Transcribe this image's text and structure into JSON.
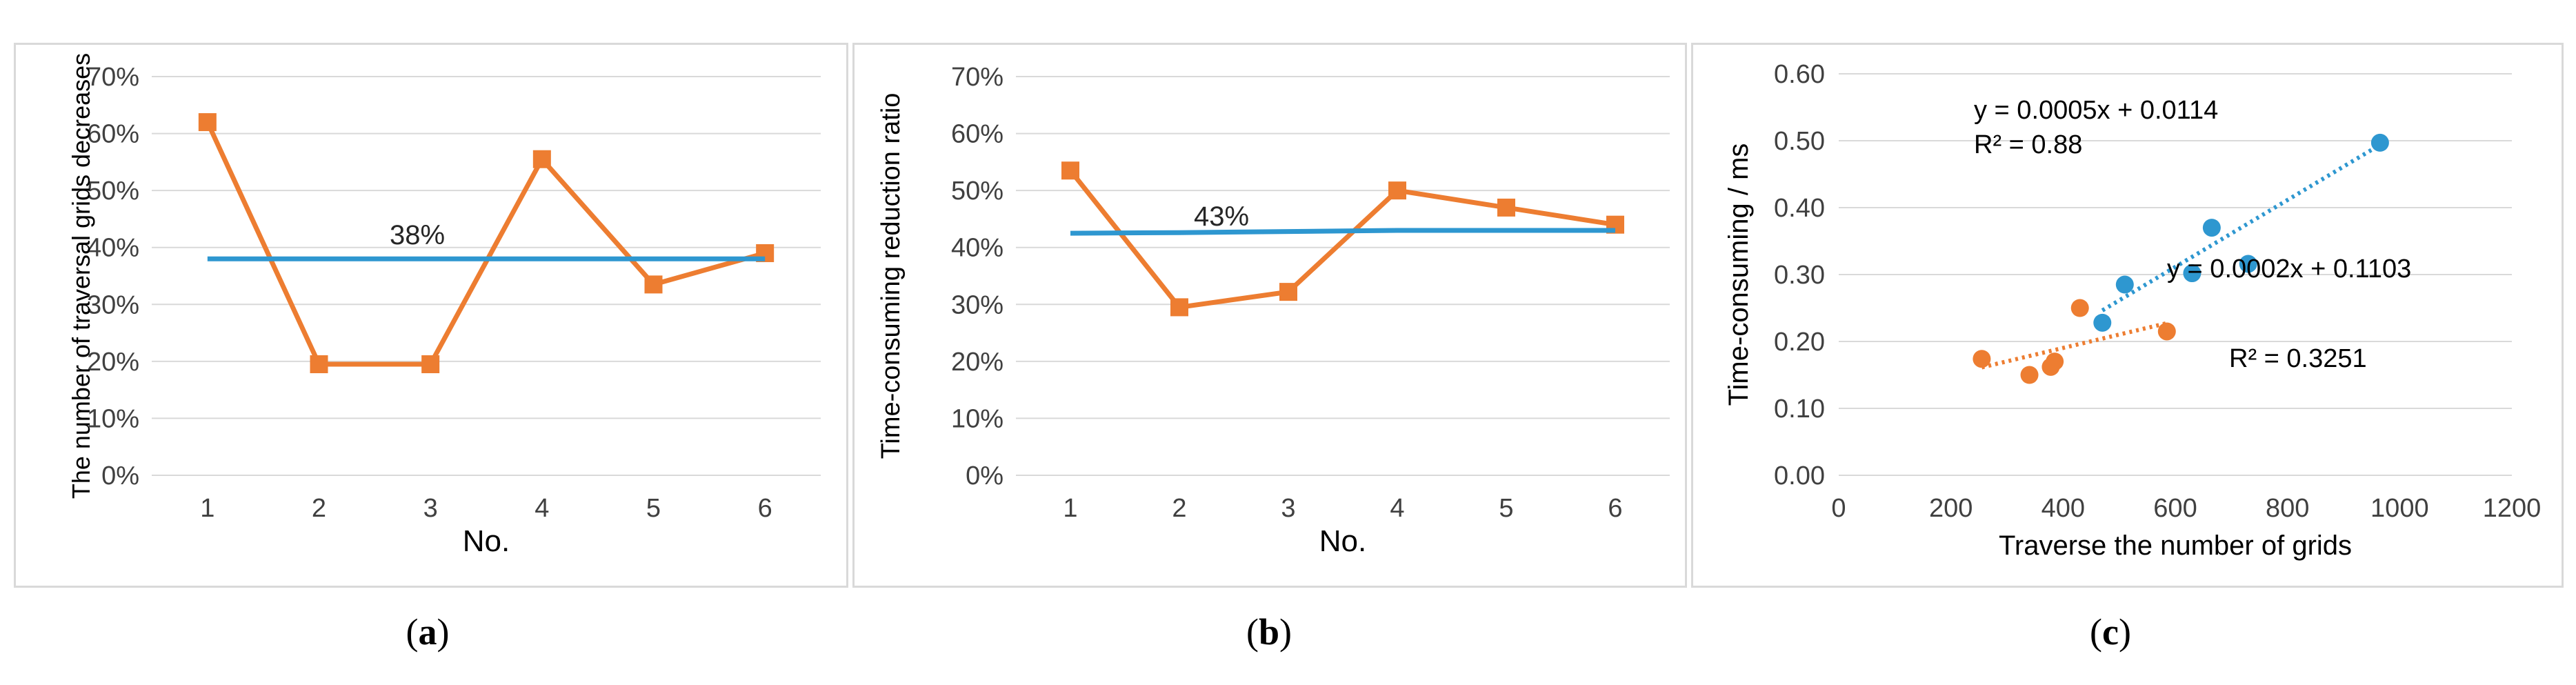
{
  "captions": {
    "a_open": "(",
    "a_letter": "a",
    "a_close": ")",
    "b_open": "(",
    "b_letter": "b",
    "b_close": ")",
    "c_open": "(",
    "c_letter": "c",
    "c_close": ")"
  },
  "colors": {
    "orange": "#ED7D31",
    "blue": "#2E97D0",
    "grid": "#d9d9d9",
    "axis_text": "#404040"
  },
  "chart_data": [
    {
      "type": "line",
      "panel": "a",
      "title": "",
      "xlabel": "No.",
      "ylabel": "The number of traversal grids decreases",
      "categories": [
        "1",
        "2",
        "3",
        "4",
        "5",
        "6"
      ],
      "ylim": [
        0,
        0.7
      ],
      "yticks": [
        "0%",
        "10%",
        "20%",
        "30%",
        "40%",
        "50%",
        "60%",
        "70%"
      ],
      "series": [
        {
          "values": [
            0.62,
            0.195,
            0.195,
            0.555,
            0.335,
            0.39
          ],
          "color": "#ED7D31",
          "marker": "square"
        },
        {
          "values": [
            0.38,
            0.38,
            0.38,
            0.38,
            0.38,
            0.38
          ],
          "color": "#2E97D0",
          "marker": "none"
        }
      ],
      "annotations": [
        {
          "text": "38%"
        }
      ],
      "grid": true
    },
    {
      "type": "line",
      "panel": "b",
      "title": "",
      "xlabel": "No.",
      "ylabel": "Time-consuming reduction ratio",
      "categories": [
        "1",
        "2",
        "3",
        "4",
        "5",
        "6"
      ],
      "ylim": [
        0,
        0.7
      ],
      "yticks": [
        "0%",
        "10%",
        "20%",
        "30%",
        "40%",
        "50%",
        "60%",
        "70%"
      ],
      "series": [
        {
          "values": [
            0.535,
            0.295,
            0.322,
            0.5,
            0.47,
            0.44
          ],
          "color": "#ED7D31",
          "marker": "square"
        },
        {
          "values": [
            0.425,
            0.426,
            0.428,
            0.43,
            0.43,
            0.43
          ],
          "color": "#2E97D0",
          "marker": "none"
        }
      ],
      "annotations": [
        {
          "text": "43%"
        }
      ],
      "grid": true
    },
    {
      "type": "scatter",
      "panel": "c",
      "title": "",
      "xlabel": "Traverse the number of grids",
      "ylabel": "Time-consuming / ms",
      "xlim": [
        0,
        1200
      ],
      "ylim": [
        0,
        0.6
      ],
      "xticks": [
        "0",
        "200",
        "400",
        "600",
        "800",
        "1000",
        "1200"
      ],
      "yticks": [
        "0.00",
        "0.10",
        "0.20",
        "0.30",
        "0.40",
        "0.50",
        "0.60"
      ],
      "series": [
        {
          "color": "#2E97D0",
          "points": [
            [
              470,
              0.228
            ],
            [
              510,
              0.285
            ],
            [
              630,
              0.302
            ],
            [
              665,
              0.37
            ],
            [
              730,
              0.316
            ],
            [
              965,
              0.497
            ]
          ],
          "trend": {
            "slope": 0.0005,
            "intercept": 0.0114,
            "x_range": [
              470,
              965
            ]
          }
        },
        {
          "color": "#ED7D31",
          "points": [
            [
              255,
              0.174
            ],
            [
              340,
              0.15
            ],
            [
              378,
              0.162
            ],
            [
              385,
              0.17
            ],
            [
              430,
              0.25
            ],
            [
              585,
              0.215
            ]
          ],
          "trend": {
            "slope": 0.0002,
            "intercept": 0.1103,
            "x_range": [
              255,
              585
            ]
          }
        }
      ],
      "annotations": [
        {
          "text": "y = 0.0005x + 0.0114"
        },
        {
          "text": "R² = 0.88"
        },
        {
          "text": "y = 0.0002x + 0.1103"
        },
        {
          "text": "R² = 0.3251"
        }
      ],
      "grid": true
    }
  ]
}
